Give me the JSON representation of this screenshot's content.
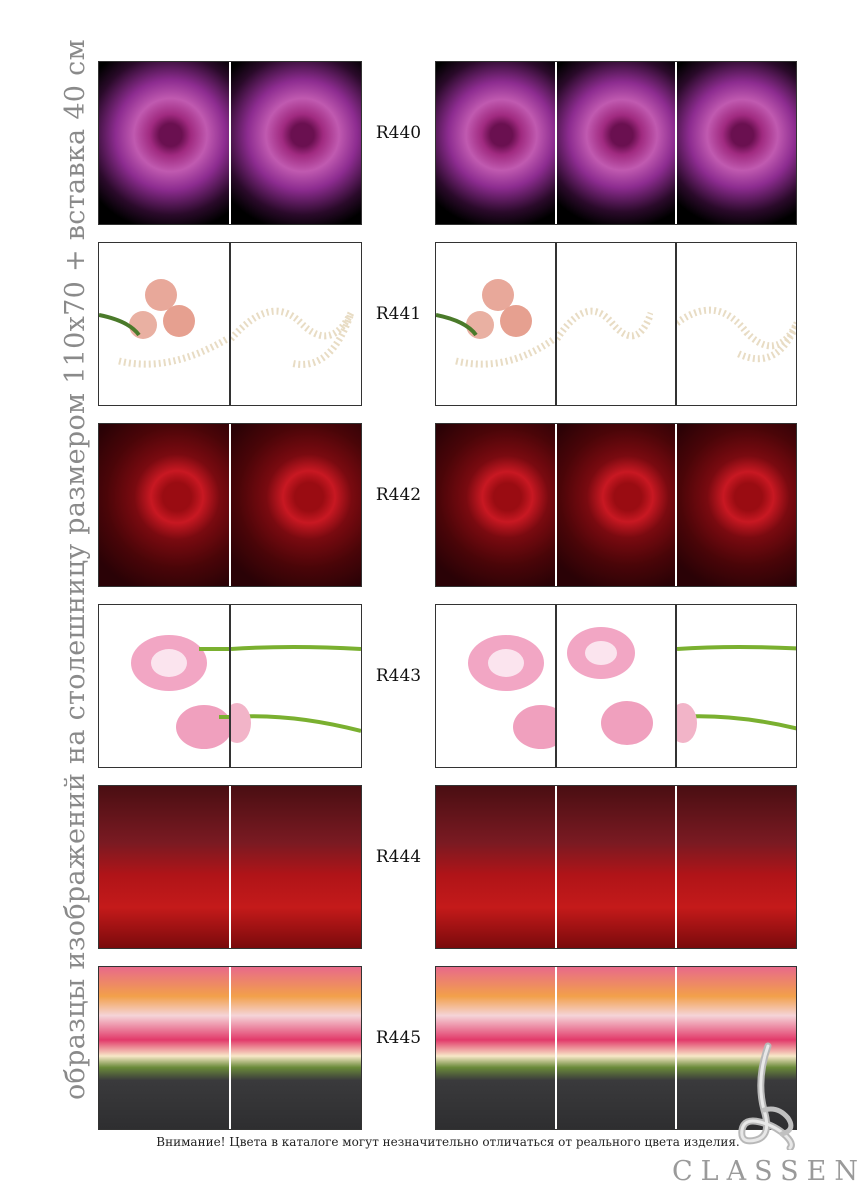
{
  "side_title": "образцы изображений на столешницу размером 110х70 + вставка 40 см",
  "rows": [
    {
      "code": "R440"
    },
    {
      "code": "R441"
    },
    {
      "code": "R442"
    },
    {
      "code": "R443"
    },
    {
      "code": "R444"
    },
    {
      "code": "R445"
    }
  ],
  "footer_note": "Внимание! Цвета в каталоге могут незначительно отличаться от реального цвета изделия.",
  "brand": "CLASSEN",
  "colors": {
    "border": "#333333",
    "side_title": "#8a8a8a",
    "brand": "#9a9a9a"
  }
}
